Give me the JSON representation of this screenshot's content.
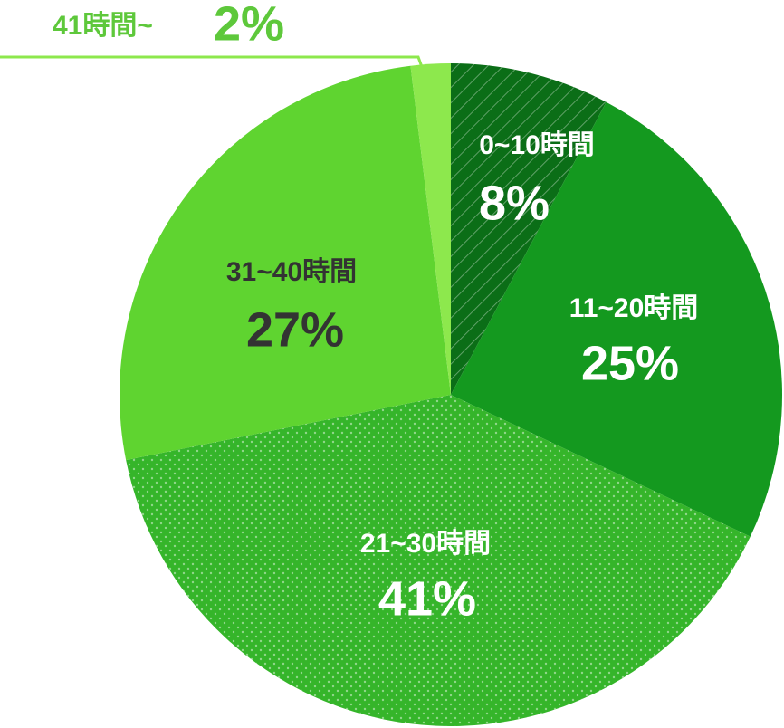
{
  "chart_data": {
    "type": "pie",
    "categories": [
      "0~10時間",
      "11~20時間",
      "21~30時間",
      "31~40時間",
      "41時間~"
    ],
    "values": [
      8,
      25,
      41,
      27,
      2
    ],
    "value_labels": [
      "8%",
      "25%",
      "41%",
      "27%",
      "2%"
    ],
    "colors": [
      "#0b6e17",
      "#14991f",
      "#35b52a",
      "#5fd430",
      "#8de84d"
    ],
    "label_colors": [
      "#ffffff",
      "#ffffff",
      "#ffffff",
      "#333333",
      "#5ec83b"
    ],
    "patterns": [
      "hatch",
      null,
      "dots",
      null,
      null
    ]
  }
}
